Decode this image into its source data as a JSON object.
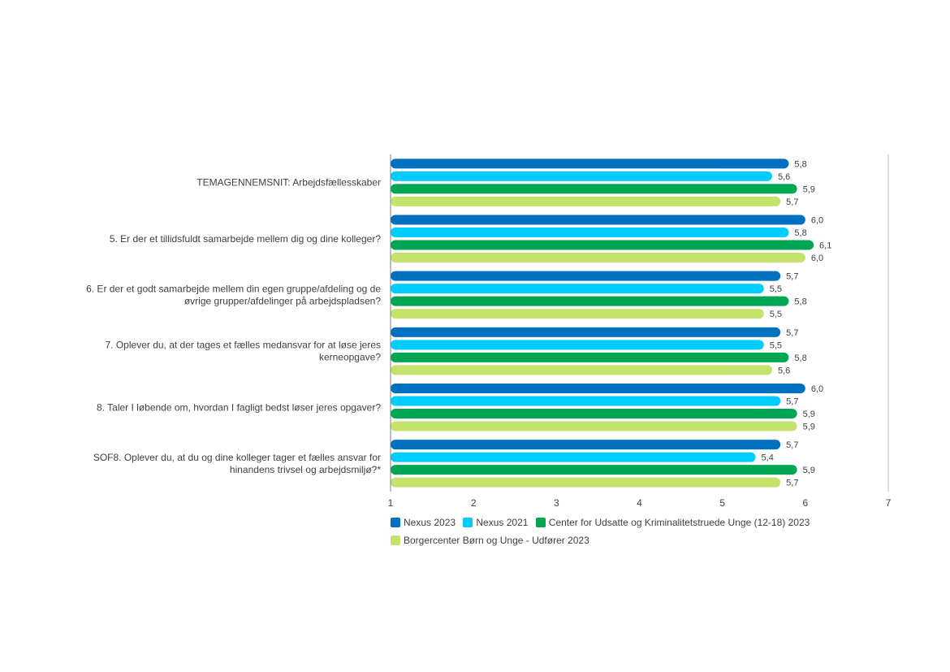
{
  "chart_data": {
    "type": "bar",
    "orientation": "horizontal",
    "categories": [
      [
        "TEMAGENNEMSNIT: Arbejdsfællesskaber"
      ],
      [
        "5. Er der et tillidsfuldt samarbejde mellem dig og dine kolleger?"
      ],
      [
        "6. Er der et godt samarbejde mellem din egen gruppe/afdeling og de",
        "øvrige grupper/afdelinger på arbejdspladsen?"
      ],
      [
        "7. Oplever du, at der tages et fælles medansvar for at løse jeres",
        "kerneopgave?"
      ],
      [
        "8. Taler I løbende om, hvordan I fagligt bedst løser jeres opgaver?"
      ],
      [
        "SOF8. Oplever du, at du og dine kolleger tager et fælles ansvar for",
        "hinandens trivsel og arbejdsmiljø?*"
      ]
    ],
    "series": [
      {
        "name": "Nexus 2023",
        "color": "#0070C0",
        "values": [
          5.8,
          6.0,
          5.7,
          5.7,
          6.0,
          5.7
        ],
        "labels": [
          "5,8",
          "6,0",
          "5,7",
          "5,7",
          "6,0",
          "5,7"
        ]
      },
      {
        "name": "Nexus 2021",
        "color": "#00CCFF",
        "values": [
          5.6,
          5.8,
          5.5,
          5.5,
          5.7,
          5.4
        ],
        "labels": [
          "5,6",
          "5,8",
          "5,5",
          "5,5",
          "5,7",
          "5,4"
        ]
      },
      {
        "name": "Center for Udsatte og Kriminalitetstruede Unge (12-18) 2023",
        "color": "#00A651",
        "values": [
          5.9,
          6.1,
          5.8,
          5.8,
          5.9,
          5.9
        ],
        "labels": [
          "5,9",
          "6,1",
          "5,8",
          "5,8",
          "5,9",
          "5,9"
        ]
      },
      {
        "name": "Borgercenter Børn og Unge - Udfører 2023",
        "color": "#C5E26B",
        "values": [
          5.7,
          6.0,
          5.5,
          5.6,
          5.9,
          5.7
        ],
        "labels": [
          "5,7",
          "6,0",
          "5,5",
          "5,6",
          "5,9",
          "5,7"
        ]
      }
    ],
    "xlim": [
      1,
      7
    ],
    "xticks": [
      "1",
      "2",
      "3",
      "4",
      "5",
      "6",
      "7"
    ],
    "legend_position": "bottom"
  }
}
